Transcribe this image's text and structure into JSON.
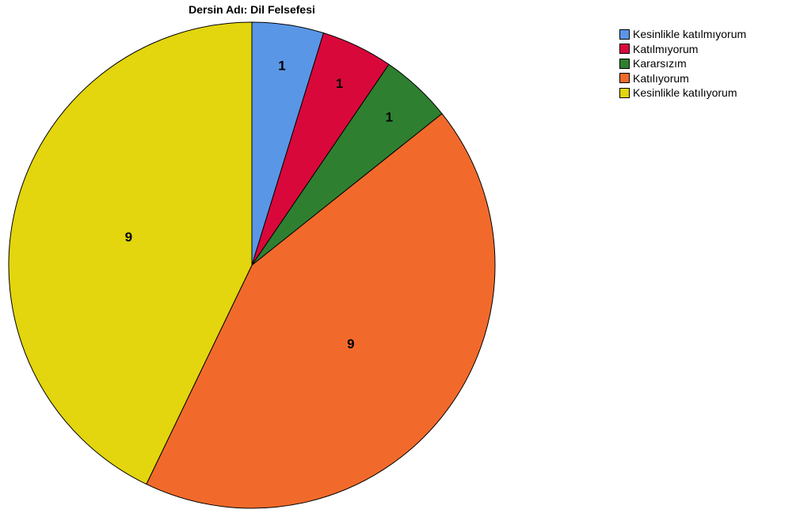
{
  "chart_data": {
    "type": "pie",
    "title": "Dersin Adı: Dil Felsefesi",
    "categories": [
      "Kesinlikle katılmıyorum",
      "Katılmıyorum",
      "Kararsızım",
      "Katılıyorum",
      "Kesinlikle katılıyorum"
    ],
    "values": [
      1,
      1,
      1,
      9,
      9
    ],
    "colors": [
      "#5a96e6",
      "#d9083b",
      "#2e8030",
      "#f26a2b",
      "#e3d50e"
    ],
    "data_labels": [
      "1",
      "1",
      "1",
      "9",
      "9"
    ],
    "legend_position": "top-right",
    "start_angle": "12 o'clock",
    "direction": "clockwise"
  }
}
